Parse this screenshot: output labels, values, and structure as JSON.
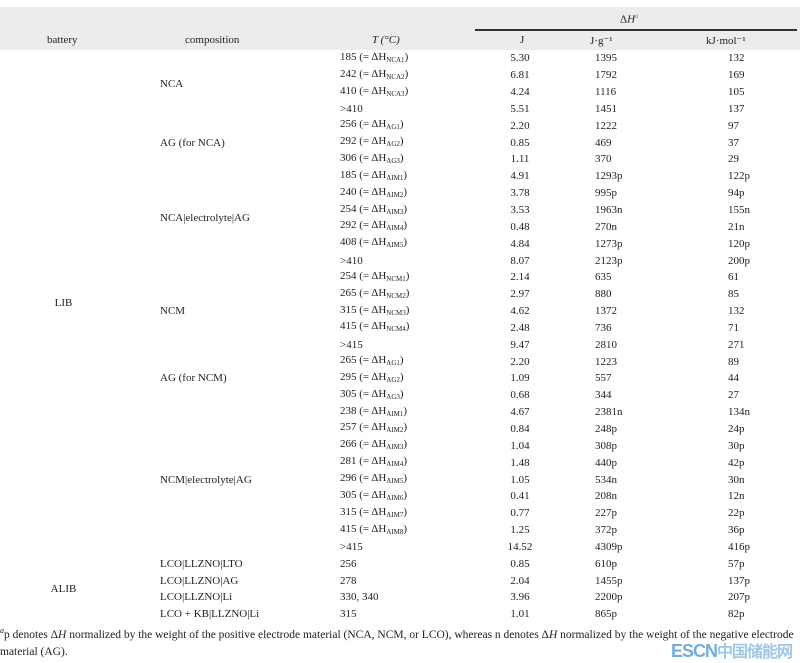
{
  "header": {
    "battery": "battery",
    "composition": "composition",
    "t": "T (°C)",
    "dh": "ΔH",
    "dh_note": "a",
    "j": "J",
    "jg": "J·g⁻¹",
    "kjmol": "kJ·mol⁻¹"
  },
  "groups": [
    {
      "battery": "LIB",
      "rows_span": 30,
      "compositions": [
        {
          "name": "NCA",
          "rows": [
            {
              "t": "185 (= ΔH",
              "sub": "NCA1",
              "suf": ")",
              "j": "5.30",
              "jg": "1395",
              "kj": "132"
            },
            {
              "t": "242 (= ΔH",
              "sub": "NCA2",
              "suf": ")",
              "j": "6.81",
              "jg": "1792",
              "kj": "169"
            },
            {
              "t": "410 (= ΔH",
              "sub": "NCA3",
              "suf": ")",
              "j": "4.24",
              "jg": "1116",
              "kj": "105"
            },
            {
              "t": ">410",
              "j": "5.51",
              "jg": "1451",
              "kj": "137"
            }
          ]
        },
        {
          "name": "AG (for NCA)",
          "rows": [
            {
              "t": "256 (= ΔH",
              "sub": "AG1",
              "suf": ")",
              "j": "2.20",
              "jg": "1222",
              "kj": "97"
            },
            {
              "t": "292 (= ΔH",
              "sub": "AG2",
              "suf": ")",
              "j": "0.85",
              "jg": "469",
              "kj": "37"
            },
            {
              "t": "306 (= ΔH",
              "sub": "AG3",
              "suf": ")",
              "j": "1.11",
              "jg": "370",
              "kj": "29"
            }
          ]
        },
        {
          "name": "NCA|electrolyte|AG",
          "rows": [
            {
              "t": "185 (= ΔH",
              "sub": "AIM1",
              "suf": ")",
              "j": "4.91",
              "jg": "1293p",
              "kj": "122p"
            },
            {
              "t": "240 (= ΔH",
              "sub": "AIM2",
              "suf": ")",
              "j": "3.78",
              "jg": "995p",
              "kj": "94p"
            },
            {
              "t": "254 (= ΔH",
              "sub": "AIM3",
              "suf": ")",
              "j": "3.53",
              "jg": "1963n",
              "kj": "155n"
            },
            {
              "t": "292 (= ΔH",
              "sub": "AIM4",
              "suf": ")",
              "j": "0.48",
              "jg": "270n",
              "kj": "21n"
            },
            {
              "t": "408 (= ΔH",
              "sub": "AIM5",
              "suf": ")",
              "j": "4.84",
              "jg": "1273p",
              "kj": "120p"
            },
            {
              "t": ">410",
              "j": "8.07",
              "jg": "2123p",
              "kj": "200p"
            }
          ]
        },
        {
          "name": "NCM",
          "rows": [
            {
              "t": "254 (= ΔH",
              "sub": "NCM1",
              "suf": ")",
              "j": "2.14",
              "jg": "635",
              "kj": "61"
            },
            {
              "t": "265 (= ΔH",
              "sub": "NCM2",
              "suf": ")",
              "j": "2.97",
              "jg": "880",
              "kj": "85"
            },
            {
              "t": "315 (= ΔH",
              "sub": "NCM3",
              "suf": ")",
              "j": "4.62",
              "jg": "1372",
              "kj": "132"
            },
            {
              "t": "415 (= ΔH",
              "sub": "NCM4",
              "suf": ")",
              "j": "2.48",
              "jg": "736",
              "kj": "71"
            },
            {
              "t": ">415",
              "j": "9.47",
              "jg": "2810",
              "kj": "271"
            }
          ]
        },
        {
          "name": "AG (for NCM)",
          "rows": [
            {
              "t": "265 (= ΔH",
              "sub": "AG1",
              "suf": ")",
              "j": "2.20",
              "jg": "1223",
              "kj": "89"
            },
            {
              "t": "295 (= ΔH",
              "sub": "AG2",
              "suf": ")",
              "j": "1.09",
              "jg": "557",
              "kj": "44"
            },
            {
              "t": "305 (= ΔH",
              "sub": "AG3",
              "suf": ")",
              "j": "0.68",
              "jg": "344",
              "kj": "27"
            }
          ]
        },
        {
          "name": "NCM|electrolyte|AG",
          "rows": [
            {
              "t": "238 (= ΔH",
              "sub": "AIM1",
              "suf": ")",
              "j": "4.67",
              "jg": "2381n",
              "kj": "134n"
            },
            {
              "t": "257 (= ΔH",
              "sub": "AIM2",
              "suf": ")",
              "j": "0.84",
              "jg": "248p",
              "kj": "24p"
            },
            {
              "t": "266 (= ΔH",
              "sub": "AIM3",
              "suf": ")",
              "j": "1.04",
              "jg": "308p",
              "kj": "30p"
            },
            {
              "t": "281 (= ΔH",
              "sub": "AIM4",
              "suf": ")",
              "j": "1.48",
              "jg": "440p",
              "kj": "42p"
            },
            {
              "t": "296 (= ΔH",
              "sub": "AIM5",
              "suf": ")",
              "j": "1.05",
              "jg": "534n",
              "kj": "30n"
            },
            {
              "t": "305 (= ΔH",
              "sub": "AIM6",
              "suf": ")",
              "j": "0.41",
              "jg": "208n",
              "kj": "12n"
            },
            {
              "t": "315 (= ΔH",
              "sub": "AIM7",
              "suf": ")",
              "j": "0.77",
              "jg": "227p",
              "kj": "22p"
            },
            {
              "t": "415 (= ΔH",
              "sub": "AIM8",
              "suf": ")",
              "j": "1.25",
              "jg": "372p",
              "kj": "36p"
            },
            {
              "t": ">415",
              "j": "14.52",
              "jg": "4309p",
              "kj": "416p"
            }
          ]
        }
      ]
    },
    {
      "battery": "ALIB",
      "rows_span": 4,
      "compositions": [
        {
          "name": "LCO|LLZNO|LTO",
          "rows": [
            {
              "t": "256",
              "j": "0.85",
              "jg": "610p",
              "kj": "57p"
            }
          ]
        },
        {
          "name": "LCO|LLZNO|AG",
          "rows": [
            {
              "t": "278",
              "j": "2.04",
              "jg": "1455p",
              "kj": "137p"
            }
          ]
        },
        {
          "name": "LCO|LLZNO|Li",
          "rows": [
            {
              "t": "330, 340",
              "j": "3.96",
              "jg": "2200p",
              "kj": "207p"
            }
          ]
        },
        {
          "name": "LCO + KB|LLZNO|Li",
          "rows": [
            {
              "t": "315",
              "j": "1.01",
              "jg": "865p",
              "kj": "82p"
            }
          ]
        }
      ]
    }
  ],
  "footnote": {
    "mark": "a",
    "text": "p denotes ΔH normalized by the weight of the positive electrode material (NCA, NCM, or LCO), whereas n denotes ΔH normalized by the weight of the negative electrode material (AG)."
  },
  "watermark": {
    "latin": "ESCN",
    "cjk": "中国储能网"
  },
  "colors": {
    "header_bg": "#ececec",
    "watermark": "#5aa0d8"
  }
}
